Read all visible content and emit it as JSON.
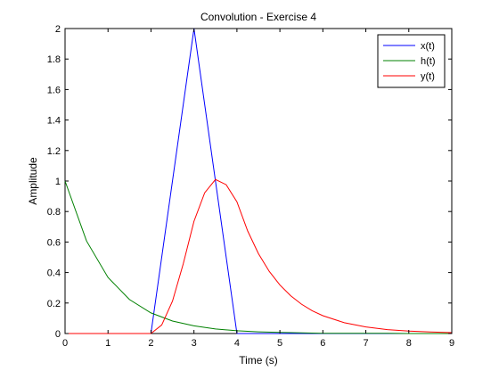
{
  "chart_data": {
    "type": "line",
    "title": "Convolution - Exercise 4",
    "xlabel": "Time (s)",
    "ylabel": "Amplitude",
    "xlim": [
      0,
      9
    ],
    "ylim": [
      0,
      2
    ],
    "x_ticks": [
      "0",
      "1",
      "2",
      "3",
      "4",
      "5",
      "6",
      "7",
      "8",
      "9"
    ],
    "y_ticks": [
      "0",
      "0.2",
      "0.4",
      "0.6",
      "0.8",
      "1",
      "1.2",
      "1.4",
      "1.6",
      "1.8",
      "2"
    ],
    "grid": false,
    "legend_position": "top-right",
    "series": [
      {
        "name": "x(t)",
        "color": "#0000ff",
        "x": [
          0,
          2,
          3,
          4,
          9
        ],
        "y": [
          0,
          0,
          2,
          0,
          0
        ]
      },
      {
        "name": "h(t)",
        "color": "#008000",
        "x": [
          0,
          0.5,
          1,
          1.5,
          2,
          2.5,
          3,
          3.5,
          4,
          4.5,
          5,
          5.5,
          6,
          6.5,
          7,
          7.5,
          8,
          8.5,
          9
        ],
        "y": [
          1.0,
          0.607,
          0.368,
          0.223,
          0.135,
          0.082,
          0.05,
          0.03,
          0.018,
          0.011,
          0.007,
          0.004,
          0.002,
          0.002,
          0.001,
          0.001,
          0.0,
          0.0,
          0.0
        ]
      },
      {
        "name": "y(t)",
        "color": "#ff0000",
        "x": [
          0,
          2,
          2.25,
          2.5,
          2.75,
          3,
          3.25,
          3.5,
          3.75,
          4,
          4.25,
          4.5,
          4.75,
          5,
          5.25,
          5.5,
          5.75,
          6,
          6.5,
          7,
          7.5,
          8,
          8.5,
          9
        ],
        "y": [
          0,
          0,
          0.056,
          0.213,
          0.456,
          0.736,
          0.923,
          1.01,
          0.976,
          0.864,
          0.673,
          0.524,
          0.408,
          0.318,
          0.248,
          0.193,
          0.15,
          0.117,
          0.071,
          0.043,
          0.026,
          0.016,
          0.01,
          0.006
        ]
      }
    ]
  }
}
